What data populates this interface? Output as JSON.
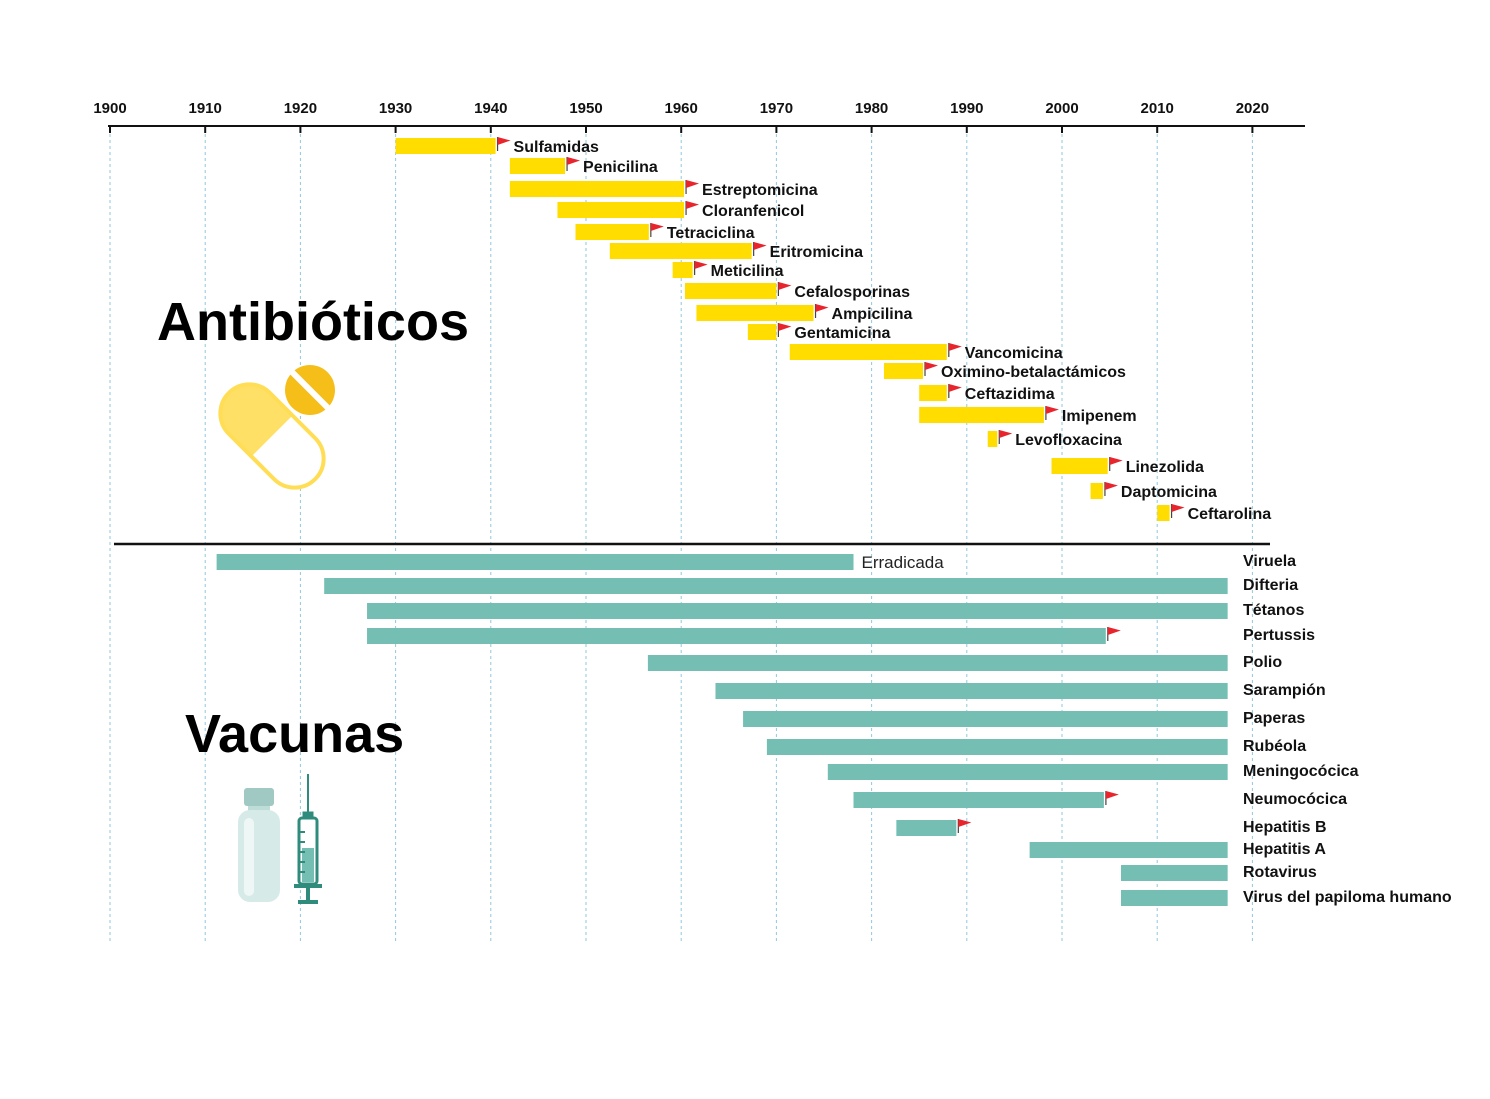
{
  "chart_data": {
    "type": "timeline",
    "xlim": [
      1900,
      2027
    ],
    "ticks": [
      1900,
      1910,
      1920,
      1930,
      1940,
      1950,
      1960,
      1970,
      1980,
      1990,
      2000,
      2010,
      2020
    ],
    "colors": {
      "antibiotic": "#FFDD00",
      "vaccine": "#74BEB4",
      "flag": "#E8242C",
      "axis": "#111111",
      "grid": "#8FC9DD"
    },
    "sections": {
      "antibiotics_title": "Antibióticos",
      "vaccines_title": "Vacunas"
    },
    "antibiotics": [
      {
        "name": "Sulfamidas",
        "start": 1930,
        "end": 1940.5,
        "flag": true
      },
      {
        "name": "Penicilina",
        "start": 1942,
        "end": 1947.8,
        "flag": true
      },
      {
        "name": "Estreptomicina",
        "start": 1942,
        "end": 1960.3,
        "flag": true
      },
      {
        "name": "Cloranfenicol",
        "start": 1947,
        "end": 1960.3,
        "flag": true
      },
      {
        "name": "Tetraciclina",
        "start": 1948.9,
        "end": 1956.6,
        "flag": true
      },
      {
        "name": "Eritromicina",
        "start": 1952.5,
        "end": 1967.4,
        "flag": true
      },
      {
        "name": "Meticilina",
        "start": 1959.1,
        "end": 1961.2,
        "flag": true
      },
      {
        "name": "Cefalosporinas",
        "start": 1960.4,
        "end": 1970,
        "flag": true
      },
      {
        "name": "Ampicilina",
        "start": 1961.6,
        "end": 1973.9,
        "flag": true
      },
      {
        "name": "Gentamicina",
        "start": 1967,
        "end": 1970,
        "flag": true
      },
      {
        "name": "Vancomicina",
        "start": 1971.4,
        "end": 1987.9,
        "flag": true
      },
      {
        "name": "Oximino-betalactámicos",
        "start": 1981.3,
        "end": 1985.4,
        "flag": true
      },
      {
        "name": "Ceftazidima",
        "start": 1985,
        "end": 1987.9,
        "flag": true
      },
      {
        "name": "Imipenem",
        "start": 1985,
        "end": 1998.1,
        "flag": true
      },
      {
        "name": "Levofloxacina",
        "start": 1992.2,
        "end": 1993.2,
        "flag": true
      },
      {
        "name": "Linezolida",
        "start": 1998.9,
        "end": 2004.8,
        "flag": true
      },
      {
        "name": "Daptomicina",
        "start": 2003,
        "end": 2004.3,
        "flag": true
      },
      {
        "name": "Ceftarolina",
        "start": 2010,
        "end": 2011.3,
        "flag": true
      }
    ],
    "vaccines": [
      {
        "name": "Viruela",
        "start": 1911.2,
        "end": 1978.1,
        "flag": false,
        "note": "Erradicada"
      },
      {
        "name": "Difteria",
        "start": 1922.5,
        "end": 2017.4,
        "flag": false
      },
      {
        "name": "Tétanos",
        "start": 1927,
        "end": 2017.4,
        "flag": false
      },
      {
        "name": "Pertussis",
        "start": 1927,
        "end": 2004.6,
        "flag": true
      },
      {
        "name": "Polio",
        "start": 1956.5,
        "end": 2017.4,
        "flag": false
      },
      {
        "name": "Sarampión",
        "start": 1963.6,
        "end": 2017.4,
        "flag": false
      },
      {
        "name": "Paperas",
        "start": 1966.5,
        "end": 2017.4,
        "flag": false
      },
      {
        "name": "Rubéola",
        "start": 1969,
        "end": 2017.4,
        "flag": false
      },
      {
        "name": "Meningocócica",
        "start": 1975.4,
        "end": 2017.4,
        "flag": false
      },
      {
        "name": "Neumocócica",
        "start": 1978.1,
        "end": 2004.4,
        "flag": true
      },
      {
        "name": "Hepatitis B",
        "start": 1982.6,
        "end": 1988.9,
        "flag": true
      },
      {
        "name": "Hepatitis A",
        "start": 1996.6,
        "end": 2017.4,
        "flag": false
      },
      {
        "name": "Rotavirus",
        "start": 2006.2,
        "end": 2017.4,
        "flag": false
      },
      {
        "name": "Virus del papiloma humano",
        "start": 2006.2,
        "end": 2017.4,
        "flag": false
      }
    ]
  }
}
